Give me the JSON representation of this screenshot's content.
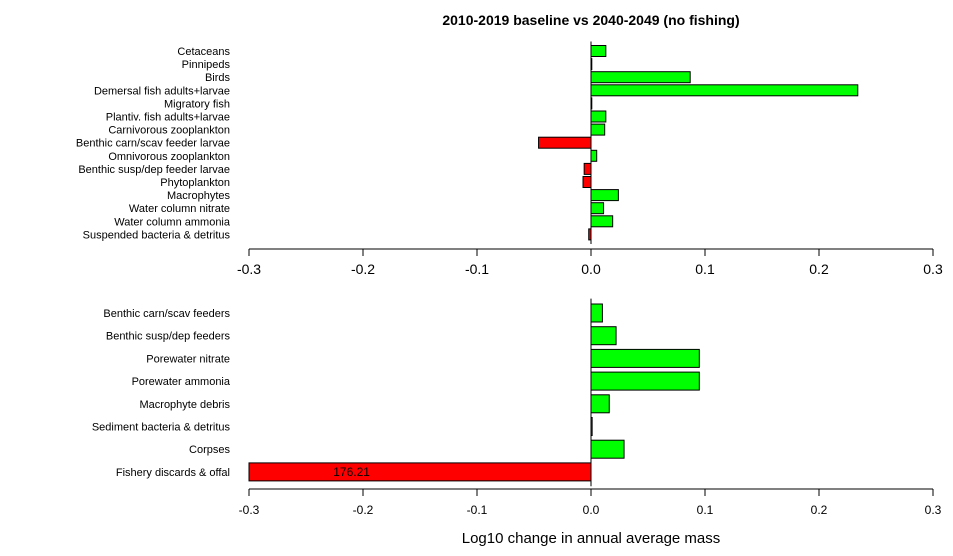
{
  "chart_data": [
    {
      "type": "bar",
      "orientation": "horizontal",
      "title": "2010-2019 baseline vs 2040-2049 (no fishing)",
      "xlabel": "",
      "xlim": [
        -0.3,
        0.3
      ],
      "xticks": [
        "-0.3",
        "-0.2",
        "-0.1",
        "0.0",
        "0.1",
        "0.2",
        "0.3"
      ],
      "categories": [
        "Cetaceans",
        "Pinnipeds",
        "Birds",
        "Demersal fish adults+larvae",
        "Migratory fish",
        "Plantiv. fish adults+larvae",
        "Carnivorous zooplankton",
        "Benthic carn/scav feeder larvae",
        "Omnivorous zooplankton",
        "Benthic susp/dep feeder larvae",
        "Phytoplankton",
        "Macrophytes",
        "Water column nitrate",
        "Water column ammonia",
        "Suspended bacteria & detritus"
      ],
      "values": [
        0.013,
        0.0,
        0.087,
        0.234,
        0.0,
        0.013,
        0.012,
        -0.046,
        0.005,
        -0.006,
        -0.007,
        0.024,
        0.011,
        0.019,
        -0.002
      ],
      "colors": {
        "positive": "#00ff00",
        "negative": "#ff0000"
      }
    },
    {
      "type": "bar",
      "orientation": "horizontal",
      "title": "",
      "xlabel": "Log10 change in annual average mass",
      "xlim": [
        -0.3,
        0.3
      ],
      "xticks": [
        "-0.3",
        "-0.2",
        "-0.1",
        "0.0",
        "0.1",
        "0.2",
        "0.3"
      ],
      "categories": [
        "Benthic carn/scav feeders",
        "Benthic susp/dep feeders",
        "Porewater nitrate",
        "Porewater ammonia",
        "Macrophyte debris",
        "Sediment bacteria & detritus",
        "Corpses",
        "Fishery discards & offal"
      ],
      "values": [
        0.01,
        0.022,
        0.095,
        0.095,
        0.016,
        0.001,
        0.029,
        -0.3
      ],
      "annotations": [
        {
          "category": "Fishery discards & offal",
          "text": "176.21"
        }
      ],
      "colors": {
        "positive": "#00ff00",
        "negative": "#ff0000"
      }
    }
  ]
}
